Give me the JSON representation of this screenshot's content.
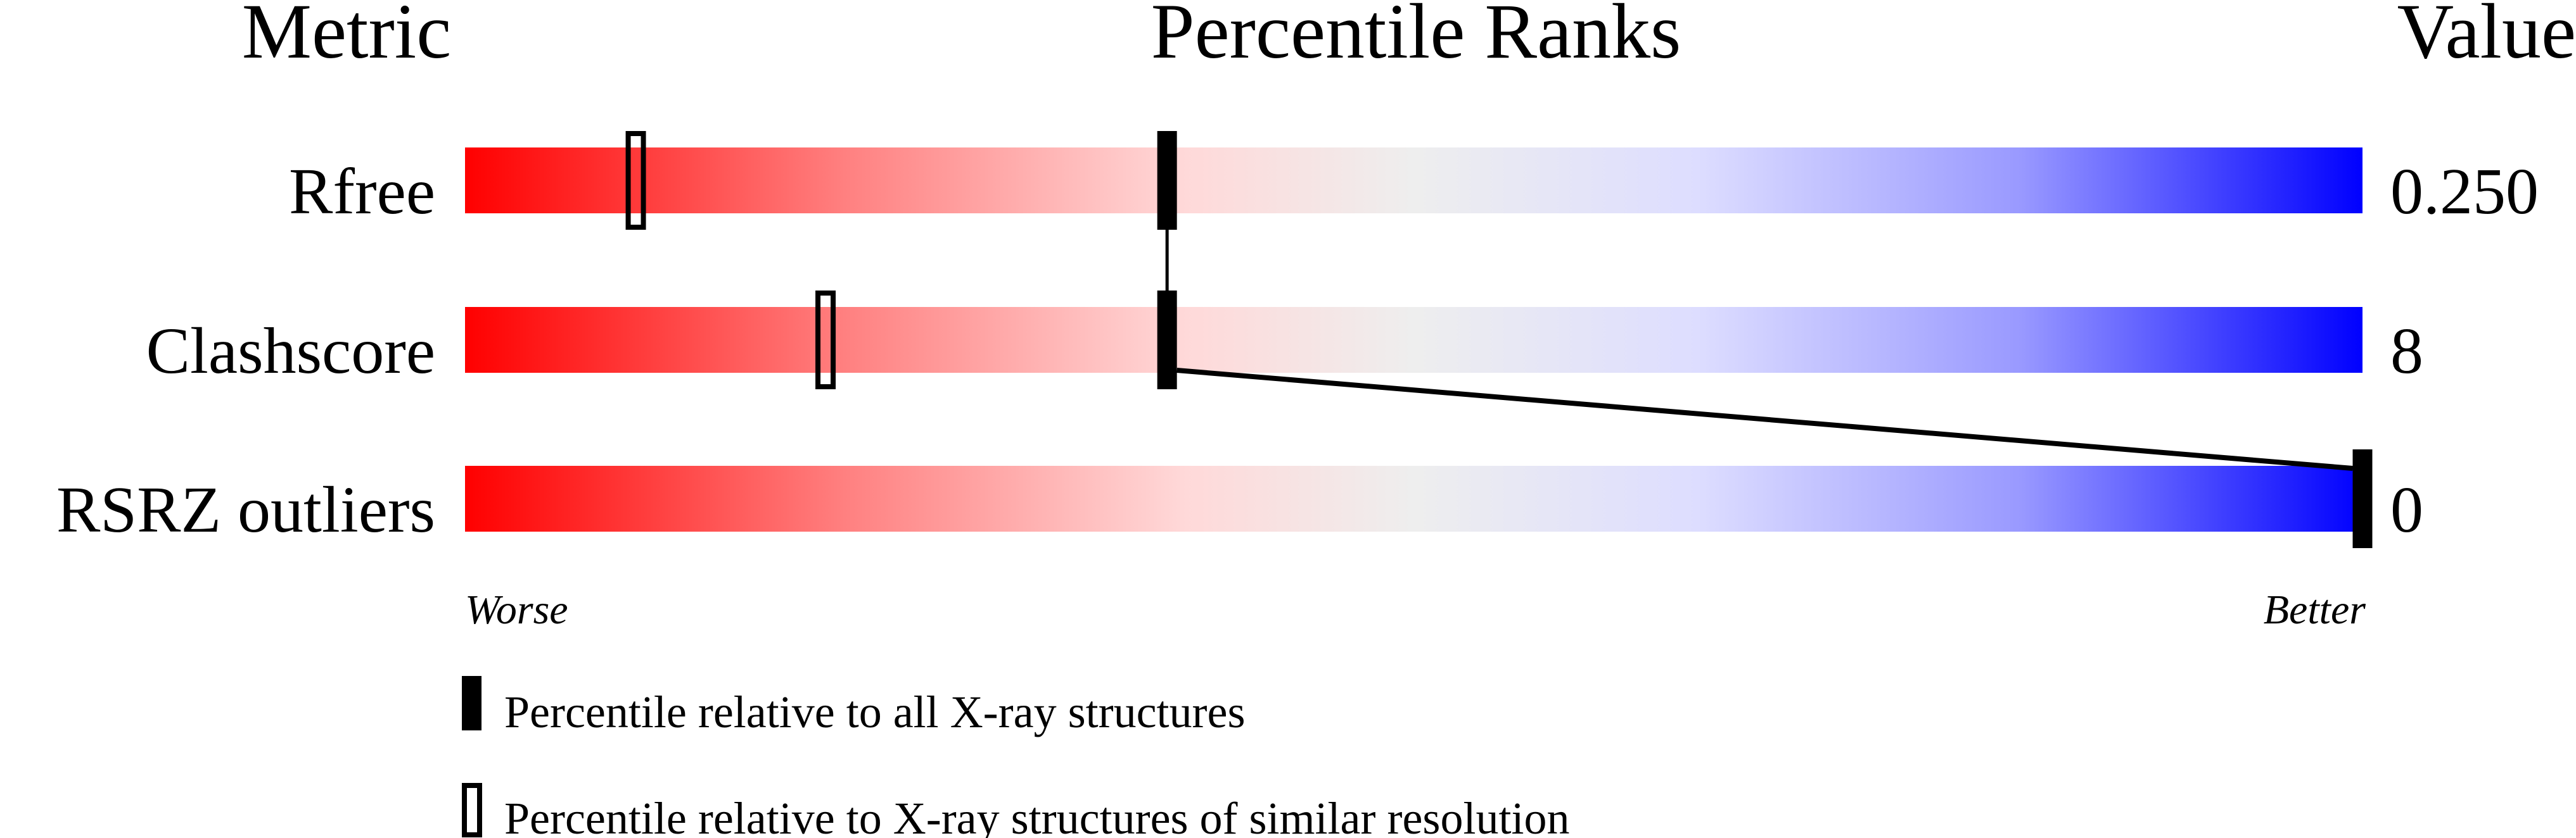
{
  "chart_data": {
    "type": "percentile-slider",
    "headers": {
      "metric": "Metric",
      "ranks": "Percentile Ranks",
      "value": "Value"
    },
    "axis": {
      "worse_label": "Worse",
      "better_label": "Better",
      "range": [
        0,
        100
      ]
    },
    "metrics": [
      {
        "name": "Rfree",
        "value": "0.250",
        "percentile_all": 37,
        "percentile_similar": 9
      },
      {
        "name": "Clashscore",
        "value": "8",
        "percentile_all": 37,
        "percentile_similar": 19
      },
      {
        "name": "RSRZ outliers",
        "value": "0",
        "percentile_all": 100,
        "percentile_similar": null
      }
    ],
    "legend": {
      "filled": "Percentile relative to all X-ray structures",
      "open": "Percentile relative to X-ray structures of similar resolution"
    },
    "colors": {
      "worse": "#ff0000",
      "middle": "#eeeeee",
      "better": "#0000ff",
      "marker": "#000000"
    }
  }
}
